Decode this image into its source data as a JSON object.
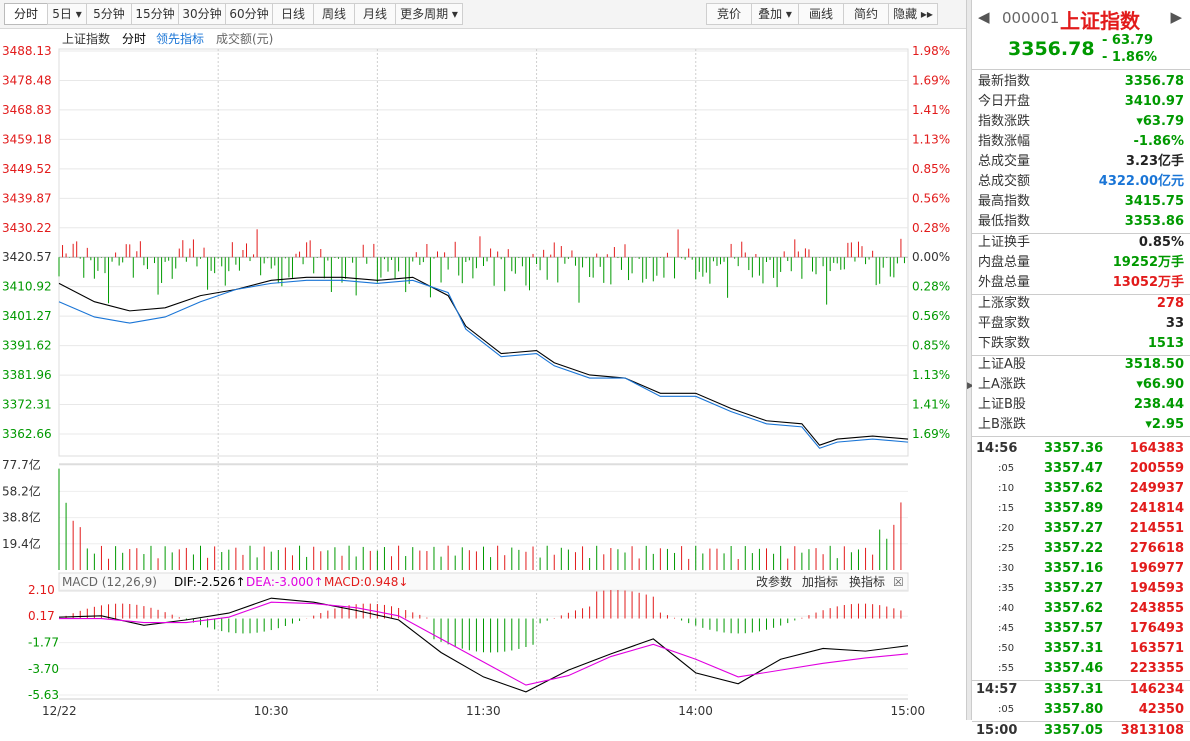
{
  "toolbar": {
    "periods": [
      "分时",
      "5日",
      "5分钟",
      "15分钟",
      "30分钟",
      "60分钟",
      "日线",
      "周线",
      "月线",
      "更多周期"
    ],
    "right_buttons": [
      "竞价",
      "叠加",
      "画线",
      "简约",
      "隐藏"
    ]
  },
  "legend": {
    "items": [
      "上证指数",
      "分时",
      "领先指标",
      "成交额(元)"
    ]
  },
  "price_axis": {
    "left": [
      "3488.13",
      "3478.48",
      "3468.83",
      "3459.18",
      "3449.52",
      "3439.87",
      "3430.22",
      "3420.57",
      "3410.92",
      "3401.27",
      "3391.62",
      "3381.96",
      "3372.31",
      "3362.66"
    ],
    "right": [
      "1.98%",
      "1.69%",
      "1.41%",
      "1.13%",
      "0.85%",
      "0.56%",
      "0.28%",
      "0.00%",
      "0.28%",
      "0.56%",
      "0.85%",
      "1.13%",
      "1.41%",
      "1.69%"
    ]
  },
  "volume_axis": {
    "labels": [
      "77.7亿",
      "58.2亿",
      "38.8亿",
      "19.4亿"
    ]
  },
  "macd": {
    "title": "MACD (12,26,9)",
    "dif": "DIF:-2.526↑",
    "dea": "DEA:-3.000↑",
    "macd": "MACD:0.948↓",
    "buttons": [
      "改参数",
      "加指标",
      "换指标"
    ],
    "axis": [
      "2.10",
      "0.17",
      "-1.77",
      "-3.70",
      "-5.63"
    ]
  },
  "time_axis": [
    "12/22",
    "10:30",
    "11:30",
    "14:00",
    "15:00"
  ],
  "colors": {
    "up": "#e21b1b",
    "down": "#009900",
    "price_line": "#000000",
    "avg_line": "#1a75d6",
    "dea_line": "#e000e0"
  },
  "chart_data": {
    "type": "line",
    "title": "上证指数 分时",
    "y_range": [
      3362.66,
      3488.13
    ],
    "preclose": 3420.57,
    "series": [
      {
        "name": "分时",
        "x": [
          0,
          10,
          20,
          30,
          40,
          50,
          60,
          70,
          80,
          90,
          100,
          110,
          115,
          125,
          135,
          140,
          150,
          160,
          170,
          180,
          190,
          200,
          210,
          215,
          220,
          230,
          240
        ],
        "values": [
          3412,
          3406,
          3403,
          3404,
          3408,
          3410,
          3413,
          3414,
          3414,
          3413,
          3414,
          3408,
          3398,
          3389,
          3390,
          3386,
          3382,
          3381,
          3376,
          3376,
          3371,
          3367,
          3366,
          3359,
          3361,
          3362,
          3361
        ]
      },
      {
        "name": "领先指标",
        "x": [
          0,
          10,
          20,
          30,
          40,
          50,
          60,
          70,
          80,
          90,
          100,
          110,
          115,
          125,
          135,
          140,
          150,
          160,
          170,
          180,
          190,
          200,
          210,
          215,
          220,
          230,
          240
        ],
        "values": [
          3406,
          3401,
          3399,
          3401,
          3406,
          3410,
          3412,
          3413,
          3413,
          3412,
          3413,
          3409,
          3397,
          3388,
          3389,
          3385,
          3381,
          3381,
          3375,
          3375,
          3370,
          3366,
          3365,
          3358,
          3360,
          3361,
          3360
        ]
      }
    ],
    "volume_ylim": [
      0,
      77.7
    ],
    "macd_ylim": [
      -5.63,
      2.1
    ]
  },
  "panel": {
    "code": "000001",
    "name": "上证指数",
    "price": "3356.78",
    "change": "- 63.79",
    "change_pct": "- 1.86%",
    "rows1": [
      {
        "k": "最新指数",
        "v": "3356.78",
        "c": "g"
      },
      {
        "k": "今日开盘",
        "v": "3410.97",
        "c": "g"
      },
      {
        "k": "指数涨跌",
        "v": "▾63.79",
        "c": "g"
      },
      {
        "k": "指数涨幅",
        "v": "-1.86%",
        "c": "g"
      },
      {
        "k": "总成交量",
        "v": "3.23亿手",
        "c": "dk"
      },
      {
        "k": "总成交额",
        "v": "4322.00亿元",
        "c": "bl"
      },
      {
        "k": "最高指数",
        "v": "3415.75",
        "c": "g"
      },
      {
        "k": "最低指数",
        "v": "3353.86",
        "c": "g"
      }
    ],
    "rows2": [
      {
        "k": "上证换手",
        "v": "0.85%",
        "c": "dk"
      },
      {
        "k": "内盘总量",
        "v": "19252万手",
        "c": "g"
      },
      {
        "k": "外盘总量",
        "v": "13052万手",
        "c": "red"
      }
    ],
    "rows3": [
      {
        "k": "上涨家数",
        "v": "278",
        "c": "red"
      },
      {
        "k": "平盘家数",
        "v": "33",
        "c": "dk"
      },
      {
        "k": "下跌家数",
        "v": "1513",
        "c": "g"
      }
    ],
    "rows4": [
      {
        "k": "上证A股",
        "v": "3518.50",
        "c": "g"
      },
      {
        "k": "上A涨跌",
        "v": "▾66.90",
        "c": "g"
      },
      {
        "k": "上证B股",
        "v": "238.44",
        "c": "g"
      },
      {
        "k": "上B涨跌",
        "v": "▾2.95",
        "c": "g"
      }
    ],
    "ticks": [
      {
        "t": "14:56",
        "p": "3357.36",
        "q": "164383",
        "main": true
      },
      {
        "t": ":05",
        "p": "3357.47",
        "q": "200559"
      },
      {
        "t": ":10",
        "p": "3357.62",
        "q": "249937"
      },
      {
        "t": ":15",
        "p": "3357.89",
        "q": "241814"
      },
      {
        "t": ":20",
        "p": "3357.27",
        "q": "214551"
      },
      {
        "t": ":25",
        "p": "3357.22",
        "q": "276618"
      },
      {
        "t": ":30",
        "p": "3357.16",
        "q": "196977"
      },
      {
        "t": ":35",
        "p": "3357.27",
        "q": "194593"
      },
      {
        "t": ":40",
        "p": "3357.62",
        "q": "243855"
      },
      {
        "t": ":45",
        "p": "3357.57",
        "q": "176493"
      },
      {
        "t": ":50",
        "p": "3357.31",
        "q": "163571"
      },
      {
        "t": ":55",
        "p": "3357.46",
        "q": "223355"
      },
      {
        "t": "14:57",
        "p": "3357.31",
        "q": "146234",
        "main": true
      },
      {
        "t": ":05",
        "p": "3357.80",
        "q": "42350"
      },
      {
        "t": "15:00",
        "p": "3357.05",
        "q": "3813108",
        "main": true
      }
    ]
  }
}
